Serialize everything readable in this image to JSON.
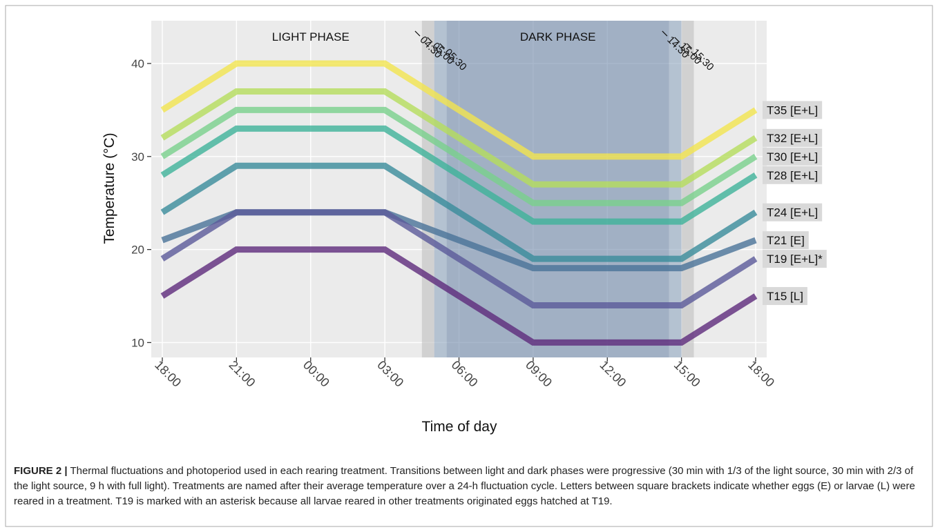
{
  "chart_data": {
    "type": "line",
    "x_label": "Time of day",
    "y_label": "Temperature (°C)",
    "x": [
      0,
      3,
      9,
      15,
      21,
      24
    ],
    "xlim": [
      0,
      24
    ],
    "xticks": [
      {
        "value": 0,
        "label": "18:00"
      },
      {
        "value": 3,
        "label": "21:00"
      },
      {
        "value": 6,
        "label": "00:00"
      },
      {
        "value": 9,
        "label": "03:00"
      },
      {
        "value": 12,
        "label": "06:00"
      },
      {
        "value": 15,
        "label": "09:00"
      },
      {
        "value": 18,
        "label": "12:00"
      },
      {
        "value": 21,
        "label": "15:00"
      },
      {
        "value": 24,
        "label": "18:00"
      }
    ],
    "ylim": [
      8.4,
      44.6
    ],
    "yticks": [
      10,
      20,
      30,
      40
    ],
    "grid": true,
    "phase_labels": [
      {
        "value": 6,
        "label": "LIGHT PHASE"
      },
      {
        "value": 16,
        "label": "DARK PHASE"
      }
    ],
    "transitions": [
      {
        "value": 10.5,
        "label": "04:30"
      },
      {
        "value": 11,
        "label": "05:00"
      },
      {
        "value": 11.5,
        "label": "05:30"
      },
      {
        "value": 20.5,
        "label": "14:30"
      },
      {
        "value": 21,
        "label": "15:00"
      },
      {
        "value": 21.5,
        "label": "15:30"
      }
    ],
    "series": [
      {
        "name": "T35 [E+L]",
        "color": "#f3e54f",
        "values": [
          35,
          40,
          40,
          30,
          30,
          35
        ]
      },
      {
        "name": "T32 [E+L]",
        "color": "#b5dd5d",
        "values": [
          32,
          37,
          37,
          27,
          27,
          32
        ]
      },
      {
        "name": "T30 [E+L]",
        "color": "#79d18c",
        "values": [
          30,
          35,
          35,
          25,
          25,
          30
        ]
      },
      {
        "name": "T28 [E+L]",
        "color": "#3fb39a",
        "values": [
          28,
          33,
          33,
          23,
          23,
          28
        ]
      },
      {
        "name": "T24 [E+L]",
        "color": "#3a8c9b",
        "values": [
          24,
          29,
          29,
          19,
          19,
          24
        ]
      },
      {
        "name": "T21 [E]",
        "color": "#4a7399",
        "values": [
          21,
          24,
          24,
          18,
          18,
          21
        ]
      },
      {
        "name": "T19 [E+L]*",
        "color": "#5b5a9a",
        "values": [
          19,
          24,
          24,
          14,
          14,
          19
        ]
      },
      {
        "name": "T15 [L]",
        "color": "#5e2a7c",
        "values": [
          15,
          20,
          20,
          10,
          10,
          15
        ]
      }
    ]
  },
  "caption": {
    "label": "FIGURE 2 |",
    "text": "Thermal fluctuations and photoperiod used in each rearing treatment. Transitions between light and dark phases were progressive (30 min with 1/3 of the light source, 30 min with 2/3 of the light source, 9 h with full light). Treatments are named after their average temperature over a 24-h fluctuation cycle. Letters between square brackets indicate whether eggs (E) or larvae (L) were reared in a treatment. T19 is marked with an asterisk because all larvae reared in other treatments originated eggs hatched at T19."
  }
}
